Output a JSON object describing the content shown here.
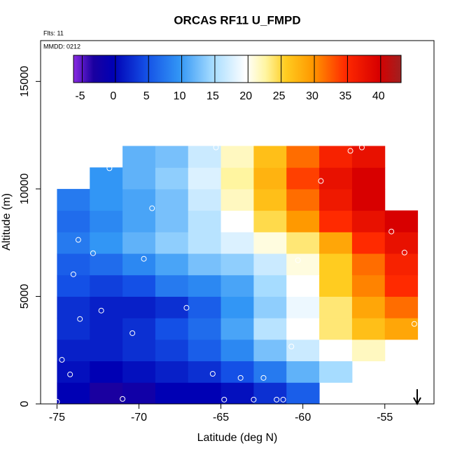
{
  "chart_data": {
    "type": "heatmap",
    "title": "ORCAS RF11 U_FMPD",
    "note_flights": "Flts: 11",
    "note_date": "MMDD: 0212",
    "x_label": "Latitude (deg N)",
    "y_label": "Altitude (m)",
    "xlim": [
      -76,
      -52
    ],
    "ylim": [
      0,
      16900
    ],
    "xticks": [
      -75,
      -70,
      -65,
      -60,
      -55
    ],
    "yticks": [
      0,
      5000,
      10000,
      15000
    ],
    "x": [
      -74,
      -72,
      -70,
      -68,
      -66,
      -64,
      -62,
      -60,
      -58,
      -56,
      -54
    ],
    "y": [
      500,
      1500,
      2500,
      3500,
      4500,
      5500,
      6500,
      7500,
      8500,
      9500,
      10500,
      11500
    ],
    "z": [
      [
        0,
        -3,
        -2,
        0,
        0,
        1,
        3,
        6,
        null,
        null,
        null
      ],
      [
        1,
        0,
        1,
        2,
        3,
        5,
        8,
        12,
        15,
        null,
        null
      ],
      [
        2,
        2,
        3,
        4,
        6,
        9,
        13,
        17,
        20,
        22,
        null
      ],
      [
        3,
        2,
        3,
        5,
        7,
        11,
        16,
        20,
        24,
        27,
        29
      ],
      [
        3,
        2,
        2,
        3,
        6,
        10,
        14,
        19,
        24,
        29,
        32
      ],
      [
        5,
        4,
        5,
        8,
        9,
        11,
        15,
        20,
        26,
        31,
        35
      ],
      [
        6,
        7,
        9,
        11,
        13,
        14,
        17,
        21,
        26,
        32,
        36
      ],
      [
        8,
        10,
        12,
        14,
        16,
        18,
        21,
        24,
        29,
        35,
        38
      ],
      [
        7,
        9,
        11,
        13,
        16,
        20,
        25,
        30,
        35,
        38,
        40
      ],
      [
        8,
        10,
        11,
        13,
        17,
        22,
        27,
        32,
        37,
        40,
        null
      ],
      [
        null,
        10,
        12,
        14,
        18,
        23,
        28,
        34,
        38,
        40,
        null
      ],
      [
        null,
        null,
        12,
        13,
        17,
        22,
        27,
        32,
        36,
        38,
        null
      ]
    ],
    "observations": {
      "x": [
        -75,
        -74.7,
        -74.2,
        -74,
        -73.7,
        -73.6,
        -72.8,
        -72.3,
        -71.8,
        -71,
        -70.4,
        -69.7,
        -69.2,
        -67.1,
        -65.5,
        -65.3,
        -64.8,
        -63.8,
        -63,
        -62.4,
        -61.6,
        -61.2,
        -60.7,
        -60.3,
        -58.9,
        -57.1,
        -56.4,
        -54.6,
        -53.8,
        -53.2
      ],
      "y": [
        100,
        2050,
        1370,
        6030,
        7630,
        3950,
        7010,
        4340,
        10960,
        230,
        3290,
        6750,
        9100,
        4470,
        1400,
        11930,
        200,
        1210,
        200,
        1210,
        200,
        200,
        2670,
        6680,
        10370,
        11770,
        11930,
        8020,
        7040,
        3720
      ]
    },
    "colorbar": {
      "lim": [
        -6,
        43.4
      ],
      "ticks": [
        -5,
        0,
        5,
        10,
        15,
        20,
        25,
        30,
        35,
        40
      ],
      "scale": [
        [
          -6,
          "#8a2be2"
        ],
        [
          -3,
          "#1a00a0"
        ],
        [
          0,
          "#0000b4"
        ],
        [
          5,
          "#1450e6"
        ],
        [
          10,
          "#3296f5"
        ],
        [
          15,
          "#a6dcff"
        ],
        [
          20,
          "#ffffff"
        ],
        [
          23,
          "#fff5a0"
        ],
        [
          26,
          "#ffcc20"
        ],
        [
          30,
          "#ff9900"
        ],
        [
          35,
          "#ff2a00"
        ],
        [
          40,
          "#d80000"
        ],
        [
          43.4,
          "#a02020"
        ]
      ]
    }
  }
}
